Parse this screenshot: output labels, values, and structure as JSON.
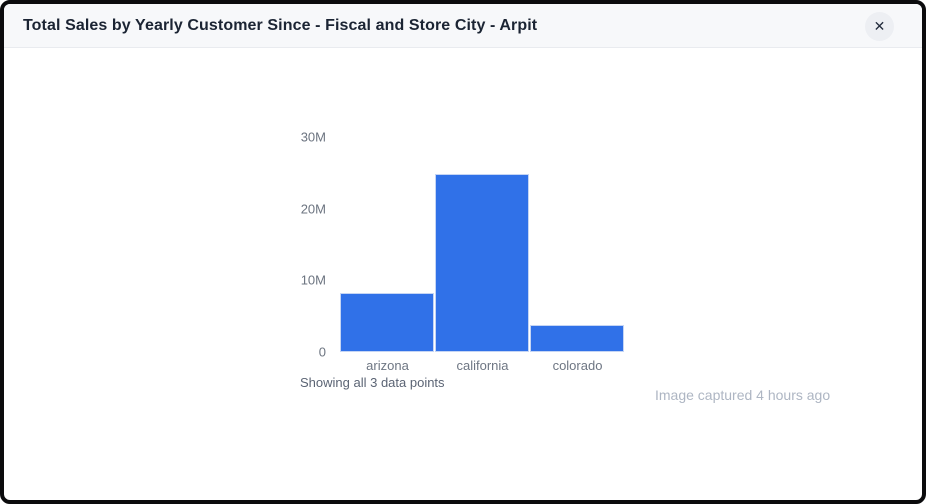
{
  "modal": {
    "title": "Total Sales by Yearly Customer Since - Fiscal and Store City - Arpit",
    "close_icon": "✕"
  },
  "chart_data": {
    "type": "bar",
    "title": "Total Sales by Yearly Customer Since - Fiscal and Store City - Arpit",
    "categories": [
      "arizona",
      "california",
      "colorado"
    ],
    "values": [
      8300000,
      24800000,
      3800000
    ],
    "xlabel": "",
    "ylabel": "",
    "ylim": [
      0,
      30000000
    ],
    "yticks": [
      {
        "label": "0",
        "value": 0
      },
      {
        "label": "10M",
        "value": 10000000
      },
      {
        "label": "20M",
        "value": 20000000
      },
      {
        "label": "30M",
        "value": 30000000
      }
    ],
    "grid": false,
    "legend": false,
    "bar_color": "#3071e8"
  },
  "footer": {
    "showing_text": "Showing all 3 data points",
    "caption": "Image captured 4 hours ago"
  },
  "colors": {
    "header_bg": "#f7f8fa",
    "title_text": "#1b2433",
    "bar": "#3071e8",
    "tick_text": "#6c7480",
    "caption_text": "#aeb6c3"
  }
}
